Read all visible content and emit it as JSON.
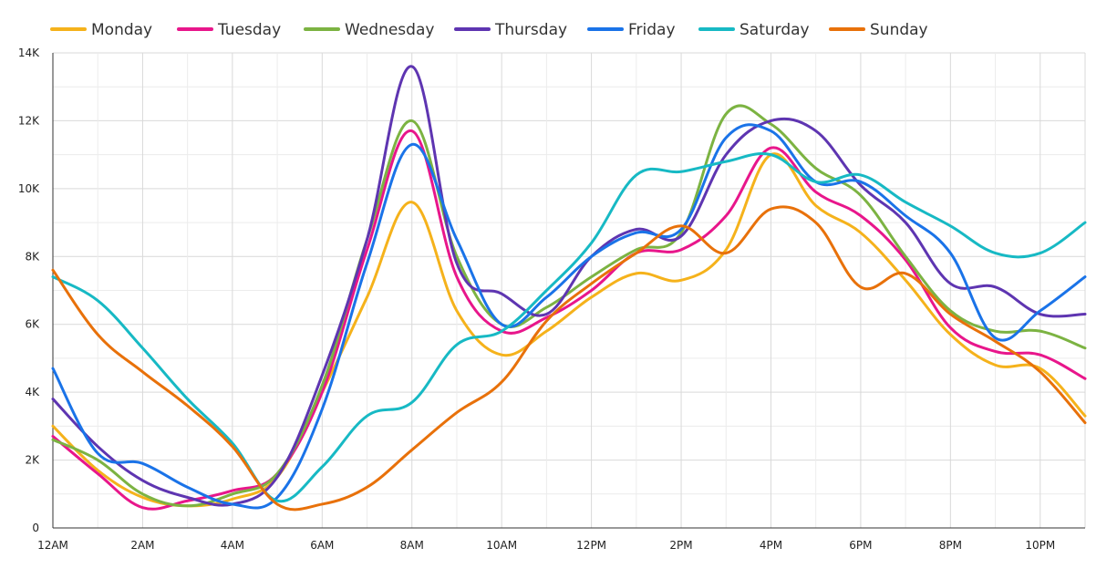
{
  "chart_data": {
    "type": "line",
    "title": "",
    "xlabel": "",
    "ylabel": "",
    "x_tick_labels": [
      "12AM",
      "2AM",
      "4AM",
      "6AM",
      "8AM",
      "10AM",
      "12PM",
      "2PM",
      "4PM",
      "6PM",
      "8PM",
      "10PM"
    ],
    "y_tick_labels": [
      "0",
      "2K",
      "4K",
      "6K",
      "8K",
      "10K",
      "12K",
      "14K"
    ],
    "ylim": [
      0,
      14000
    ],
    "xlim": [
      0,
      23
    ],
    "grid": true,
    "legend_position": "top",
    "x": [
      0,
      1,
      2,
      3,
      4,
      5,
      6,
      7,
      8,
      9,
      10,
      11,
      12,
      13,
      14,
      15,
      16,
      17,
      18,
      19,
      20,
      21,
      22,
      23
    ],
    "series": [
      {
        "name": "Monday",
        "color": "#f5b21b",
        "values": [
          3000,
          1700,
          900,
          650,
          850,
          1500,
          4000,
          6800,
          9600,
          6400,
          5100,
          5800,
          6800,
          7500,
          7300,
          8200,
          11000,
          9500,
          8700,
          7300,
          5700,
          4800,
          4700,
          3300
        ]
      },
      {
        "name": "Tuesday",
        "color": "#e8168b",
        "values": [
          2700,
          1600,
          600,
          800,
          1100,
          1600,
          4000,
          8200,
          11700,
          7400,
          5800,
          6200,
          7000,
          8100,
          8200,
          9200,
          11200,
          9900,
          9200,
          7900,
          5900,
          5200,
          5100,
          4400
        ]
      },
      {
        "name": "Wednesday",
        "color": "#7cb342",
        "values": [
          2600,
          2000,
          1000,
          650,
          1000,
          1600,
          4200,
          8500,
          12000,
          8000,
          6000,
          6500,
          7400,
          8200,
          8700,
          12200,
          11900,
          10600,
          9800,
          8000,
          6400,
          5800,
          5800,
          5300
        ]
      },
      {
        "name": "Thursday",
        "color": "#5e35b1",
        "values": [
          3800,
          2400,
          1400,
          900,
          700,
          1500,
          4500,
          8500,
          13600,
          7800,
          6900,
          6300,
          8000,
          8800,
          8600,
          11000,
          12000,
          11700,
          10100,
          9000,
          7200,
          7100,
          6300,
          6300
        ]
      },
      {
        "name": "Friday",
        "color": "#1a73e8",
        "values": [
          4700,
          2200,
          1900,
          1200,
          700,
          900,
          3500,
          7800,
          11300,
          8500,
          6000,
          6800,
          8000,
          8700,
          8800,
          11500,
          11700,
          10200,
          10200,
          9200,
          8100,
          5600,
          6400,
          7400
        ]
      },
      {
        "name": "Saturday",
        "color": "#17b9c4",
        "values": [
          7400,
          6700,
          5300,
          3800,
          2500,
          800,
          1800,
          3300,
          3700,
          5400,
          5800,
          7000,
          8400,
          10400,
          10500,
          10800,
          11000,
          10200,
          10400,
          9600,
          8900,
          8100,
          8100,
          9000
        ]
      },
      {
        "name": "Sunday",
        "color": "#e8710a",
        "values": [
          7600,
          5700,
          4600,
          3600,
          2400,
          700,
          700,
          1200,
          2300,
          3400,
          4300,
          6100,
          7200,
          8100,
          8900,
          8100,
          9400,
          9000,
          7100,
          7500,
          6300,
          5500,
          4600,
          3100
        ]
      }
    ]
  }
}
